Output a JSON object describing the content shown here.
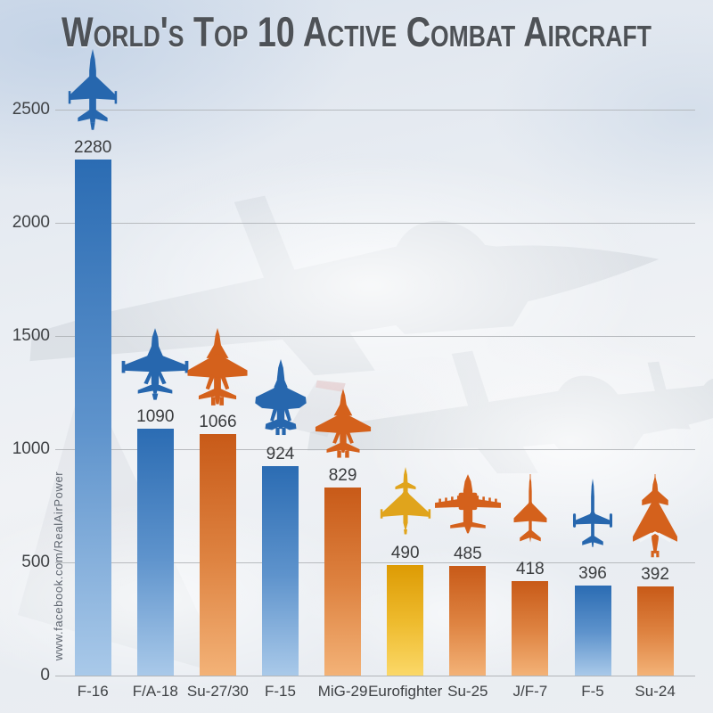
{
  "title": "World's Top 10 Active Combat Aircraft",
  "watermark": "www.facebook.com/RealAirPower",
  "chart_data": {
    "type": "bar",
    "title": "World's Top 10 Active Combat Aircraft",
    "categories": [
      "F-16",
      "F/A-18",
      "Su-27/30",
      "F-15",
      "MiG-29",
      "Eurofighter",
      "Su-25",
      "J/F-7",
      "F-5",
      "Su-24"
    ],
    "values": [
      2280,
      1090,
      1066,
      924,
      829,
      490,
      485,
      418,
      396,
      392
    ],
    "bar_color_keys": [
      "blue",
      "blue",
      "orange",
      "blue",
      "orange",
      "gold",
      "orange",
      "orange",
      "blue",
      "orange"
    ],
    "icons": [
      "f-16-topview-icon",
      "f-a-18-topview-icon",
      "su-27-30-topview-icon",
      "f-15-topview-icon",
      "mig-29-topview-icon",
      "eurofighter-topview-icon",
      "su-25-topview-icon",
      "j-f-7-topview-icon",
      "f-5-topview-icon",
      "su-24-topview-icon"
    ],
    "xlabel": "",
    "ylabel": "",
    "ylim": [
      0,
      2500
    ],
    "yticks": [
      0,
      500,
      1000,
      1500,
      2000,
      2500
    ],
    "grid": true,
    "legend": false,
    "value_labels": true,
    "background": "faded photo of F-16 fighter jets in cloudy sky"
  },
  "colors": {
    "bar_blue_top": "#2b6cb3",
    "bar_blue_mid": "#5e93cc",
    "bar_blue_bottom": "#a9c9e9",
    "bar_orange_top": "#c85a18",
    "bar_orange_mid": "#de8341",
    "bar_orange_bottom": "#f3b277",
    "bar_gold_top": "#dd9b04",
    "bar_gold_mid": "#eebb2e",
    "bar_gold_bottom": "#fbd868",
    "silhouette_blue": "#2767ae",
    "silhouette_orange": "#d4611c",
    "silhouette_gold": "#e0a41c",
    "title_text": "#4e5257",
    "axis_text": "#3f4245",
    "gridline": "#aeb1b5",
    "watermark_text": "#5f6670"
  }
}
